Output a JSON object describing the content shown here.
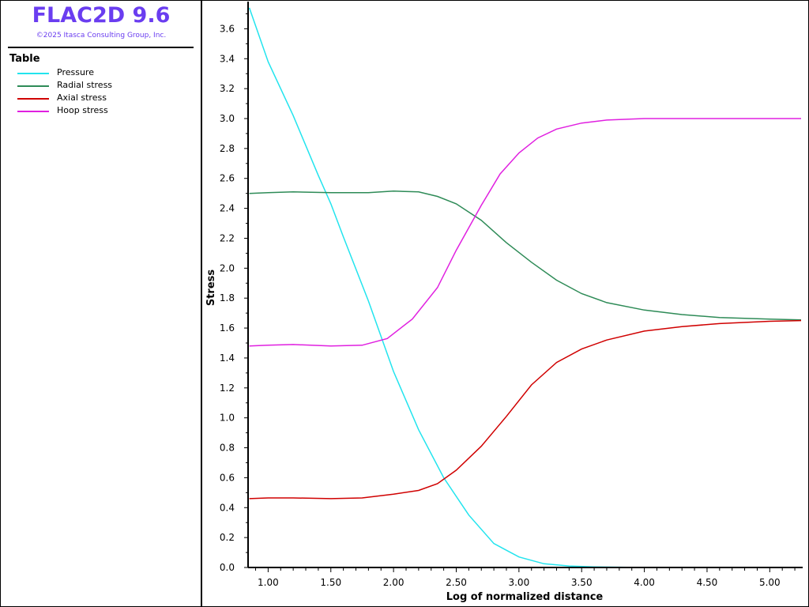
{
  "app": {
    "title": "FLAC2D 9.6",
    "copyright": "©2025 Itasca Consulting Group, Inc."
  },
  "legend": {
    "title": "Table",
    "items": [
      {
        "label": "Pressure",
        "color": "#22e4ee"
      },
      {
        "label": "Radial stress",
        "color": "#2e8b57"
      },
      {
        "label": "Axial stress",
        "color": "#d00000"
      },
      {
        "label": "Hoop stress",
        "color": "#e020e0"
      }
    ]
  },
  "chart_data": {
    "type": "line",
    "xlabel": "Log of normalized distance",
    "ylabel": "Stress",
    "xlim": [
      0.84,
      5.25
    ],
    "ylim": [
      0.0,
      3.75
    ],
    "xticks": [
      "1.00",
      "1.50",
      "2.00",
      "2.50",
      "3.00",
      "3.50",
      "4.00",
      "4.50",
      "5.00"
    ],
    "yticks": [
      "0.0",
      "0.2",
      "0.4",
      "0.6",
      "0.8",
      "1.0",
      "1.2",
      "1.4",
      "1.6",
      "1.8",
      "2.0",
      "2.2",
      "2.4",
      "2.6",
      "2.8",
      "3.0",
      "3.2",
      "3.4",
      "3.6"
    ],
    "grid": false,
    "legend_position": "left panel",
    "series": [
      {
        "name": "Pressure",
        "color": "#22e4ee",
        "points": [
          [
            0.85,
            3.74
          ],
          [
            1.0,
            3.38
          ],
          [
            1.2,
            3.02
          ],
          [
            1.4,
            2.62
          ],
          [
            1.5,
            2.43
          ],
          [
            1.6,
            2.21
          ],
          [
            1.8,
            1.78
          ],
          [
            2.0,
            1.31
          ],
          [
            2.2,
            0.92
          ],
          [
            2.4,
            0.6
          ],
          [
            2.6,
            0.35
          ],
          [
            2.8,
            0.16
          ],
          [
            3.0,
            0.07
          ],
          [
            3.2,
            0.025
          ],
          [
            3.4,
            0.01
          ],
          [
            3.6,
            0.004
          ],
          [
            4.0,
            0.0
          ],
          [
            5.25,
            0.0
          ]
        ]
      },
      {
        "name": "Radial stress",
        "color": "#2e8b57",
        "points": [
          [
            0.85,
            2.5
          ],
          [
            1.0,
            2.505
          ],
          [
            1.2,
            2.51
          ],
          [
            1.5,
            2.505
          ],
          [
            1.8,
            2.505
          ],
          [
            2.0,
            2.515
          ],
          [
            2.2,
            2.51
          ],
          [
            2.35,
            2.48
          ],
          [
            2.5,
            2.43
          ],
          [
            2.7,
            2.32
          ],
          [
            2.9,
            2.17
          ],
          [
            3.1,
            2.04
          ],
          [
            3.3,
            1.92
          ],
          [
            3.5,
            1.83
          ],
          [
            3.7,
            1.77
          ],
          [
            4.0,
            1.72
          ],
          [
            4.3,
            1.69
          ],
          [
            4.6,
            1.67
          ],
          [
            5.0,
            1.66
          ],
          [
            5.25,
            1.655
          ]
        ]
      },
      {
        "name": "Axial stress",
        "color": "#d00000",
        "points": [
          [
            0.85,
            0.46
          ],
          [
            1.0,
            0.465
          ],
          [
            1.2,
            0.465
          ],
          [
            1.5,
            0.46
          ],
          [
            1.75,
            0.465
          ],
          [
            2.0,
            0.49
          ],
          [
            2.2,
            0.515
          ],
          [
            2.35,
            0.56
          ],
          [
            2.5,
            0.65
          ],
          [
            2.7,
            0.81
          ],
          [
            2.9,
            1.01
          ],
          [
            3.1,
            1.22
          ],
          [
            3.3,
            1.37
          ],
          [
            3.5,
            1.46
          ],
          [
            3.7,
            1.52
          ],
          [
            4.0,
            1.58
          ],
          [
            4.3,
            1.61
          ],
          [
            4.6,
            1.63
          ],
          [
            5.0,
            1.645
          ],
          [
            5.25,
            1.65
          ]
        ]
      },
      {
        "name": "Hoop stress",
        "color": "#e020e0",
        "points": [
          [
            0.85,
            1.48
          ],
          [
            1.0,
            1.485
          ],
          [
            1.2,
            1.49
          ],
          [
            1.5,
            1.48
          ],
          [
            1.75,
            1.485
          ],
          [
            1.95,
            1.53
          ],
          [
            2.15,
            1.66
          ],
          [
            2.35,
            1.87
          ],
          [
            2.5,
            2.12
          ],
          [
            2.7,
            2.42
          ],
          [
            2.85,
            2.63
          ],
          [
            3.0,
            2.77
          ],
          [
            3.15,
            2.87
          ],
          [
            3.3,
            2.93
          ],
          [
            3.5,
            2.97
          ],
          [
            3.7,
            2.99
          ],
          [
            4.0,
            3.0
          ],
          [
            4.5,
            3.0
          ],
          [
            5.25,
            3.0
          ]
        ]
      }
    ]
  }
}
